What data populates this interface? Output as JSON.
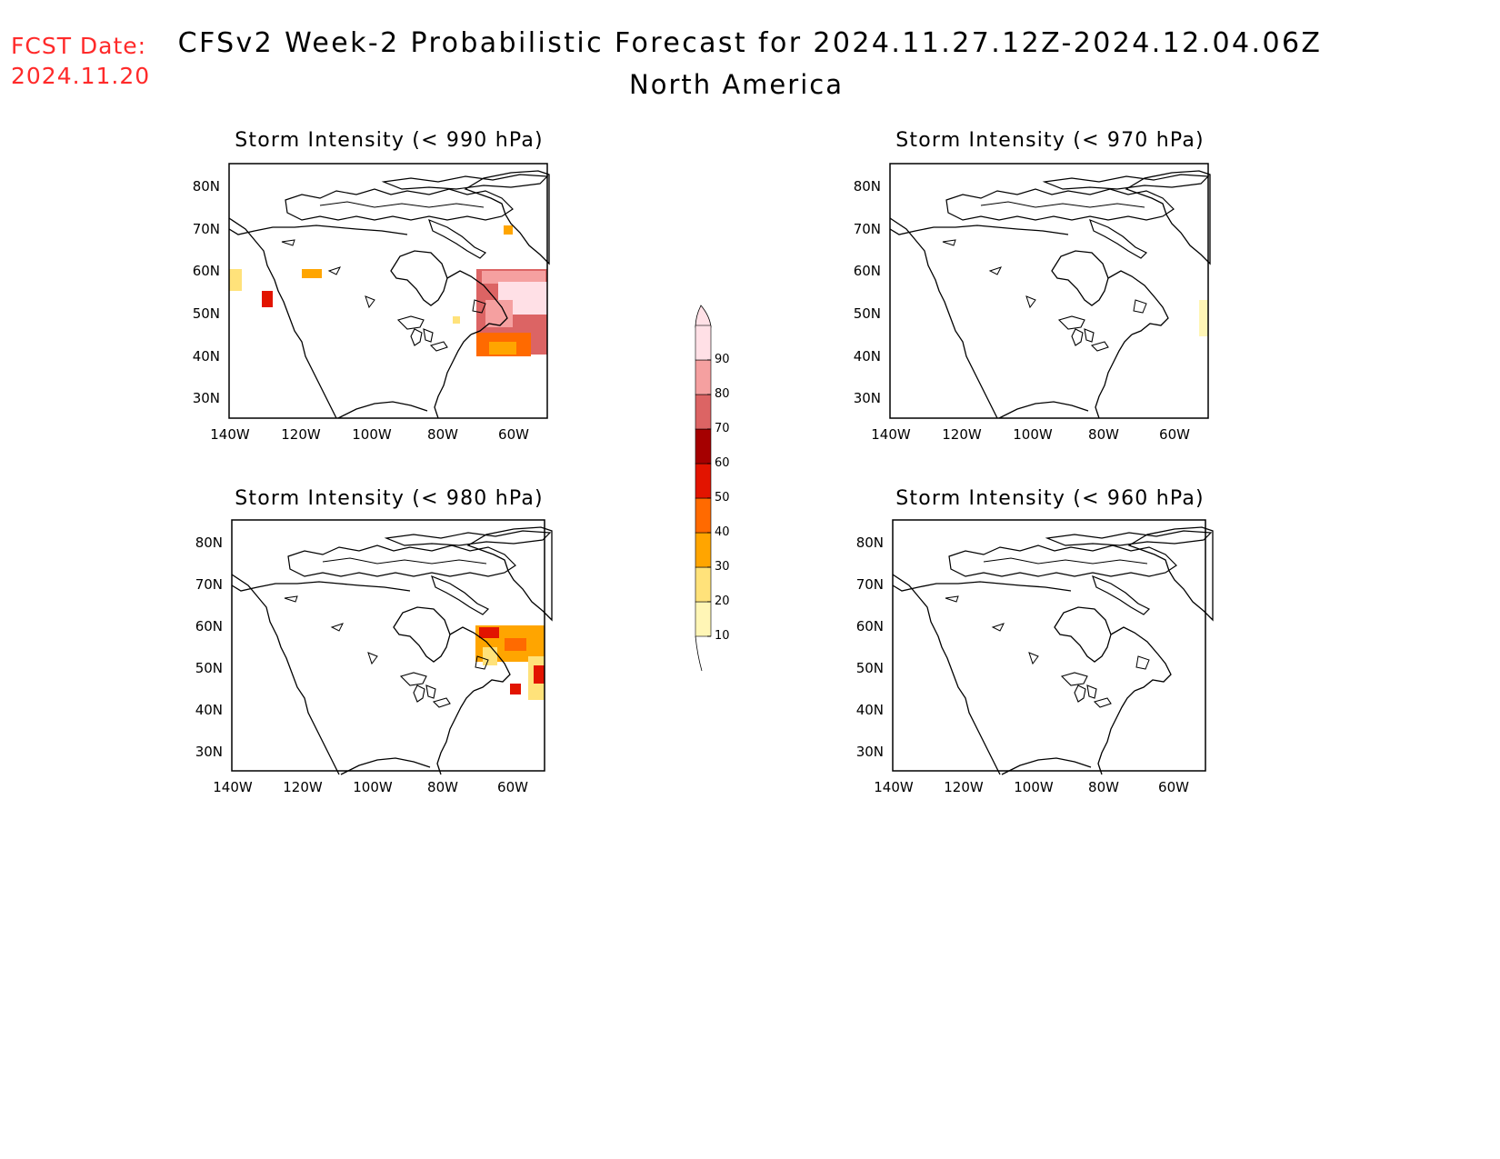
{
  "header": {
    "fcst_label": "FCST Date:",
    "fcst_date": "2024.11.20",
    "title": "CFSv2 Week-2 Probabilistic Forecast for 2024.11.27.12Z-2024.12.04.06Z",
    "subtitle": "North America"
  },
  "panels": [
    {
      "title": "Storm Intensity (< 990 hPa)"
    },
    {
      "title": "Storm Intensity (< 970 hPa)"
    },
    {
      "title": "Storm Intensity (< 980 hPa)"
    },
    {
      "title": "Storm Intensity (< 960 hPa)"
    }
  ],
  "axes": {
    "lon_labels": [
      "140W",
      "120W",
      "100W",
      "80W",
      "60W"
    ],
    "lat_labels": [
      "80N",
      "70N",
      "60N",
      "50N",
      "40N",
      "30N"
    ]
  },
  "colorbar": {
    "levels": [
      "10",
      "20",
      "30",
      "40",
      "50",
      "60",
      "70",
      "80",
      "90"
    ],
    "colors": [
      "#fff6b6",
      "#ffe27a",
      "#ffa500",
      "#ff6a00",
      "#e21400",
      "#a50000",
      "#dc6464",
      "#f5a0a0",
      "#ffe0e6"
    ]
  }
}
